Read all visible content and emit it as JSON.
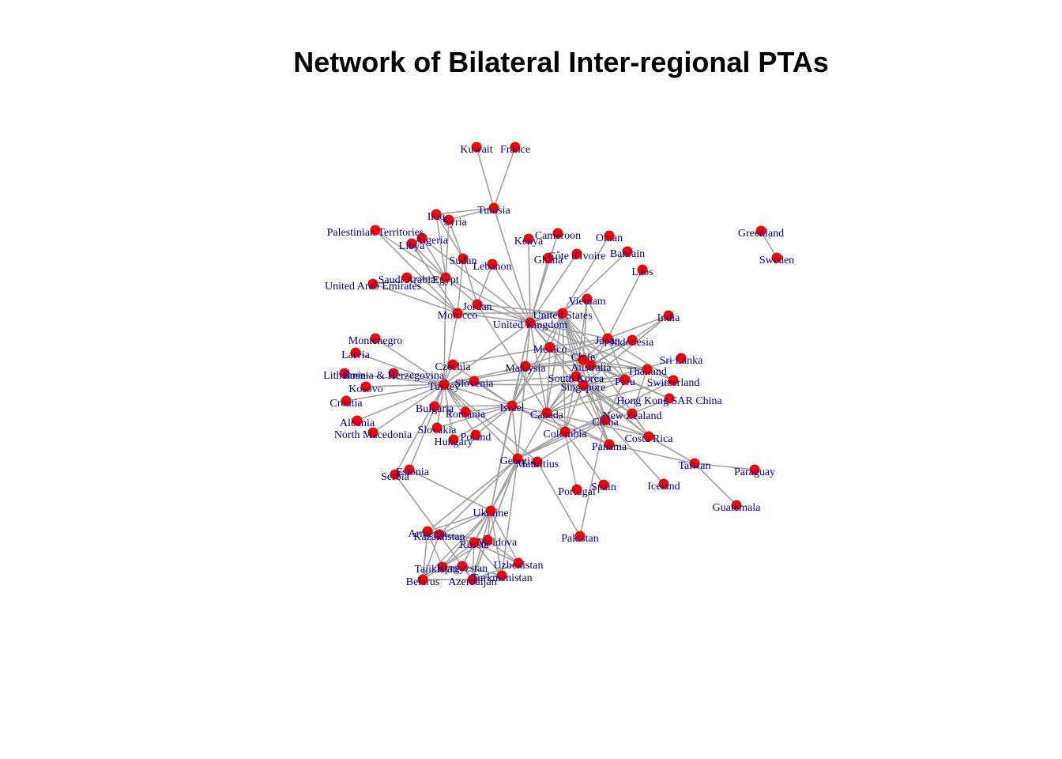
{
  "chart_data": {
    "type": "network",
    "title": "Network of Bilateral Inter-regional PTAs",
    "colors": {
      "node": "#ff0000",
      "edge": "#a0a0a0",
      "label": "#00008b"
    },
    "nodes": [
      "Kuwait",
      "France",
      "Tunisia",
      "Iraq",
      "Syria",
      "Palestinian Territories",
      "Algeria",
      "Libya",
      "Kenya",
      "Cameroon",
      "Oman",
      "Bahrain",
      "Greenland",
      "Sweden",
      "Sudan",
      "Lebanon",
      "Ghana",
      "Côte d'Ivoire",
      "Laos",
      "Saudi Arabia",
      "Egypt",
      "United Arab Emirates",
      "Jordan",
      "Morocco",
      "Vietnam",
      "United States",
      "United Kingdom",
      "India",
      "Montenegro",
      "Latvia",
      "Japan",
      "Indonesia",
      "Mexico",
      "Czechia",
      "Lithuania",
      "Bosnia & Herzegovina",
      "Malaysia",
      "Chile",
      "Australia",
      "Sri Lanka",
      "Thailand",
      "Kosovo",
      "Turkey",
      "Slovenia",
      "South Korea",
      "Peru",
      "Switzerland",
      "Singapore",
      "Croatia",
      "Hong Kong SAR China",
      "Bulgaria",
      "Israel",
      "Romania",
      "Canada",
      "New Zealand",
      "Albania",
      "China",
      "North Macedonia",
      "Slovakia",
      "Poland",
      "Hungary",
      "Colombia",
      "Costa Rica",
      "Panama",
      "Georgia",
      "Mauritius",
      "Taiwan",
      "Paraguay",
      "Estonia",
      "Serbia",
      "Portugal",
      "Spain",
      "Iceland",
      "Guatemala",
      "Ukraine",
      "Armenia",
      "Kazakhstan",
      "Pakistan",
      "Russia",
      "Moldova",
      "Tajikistan",
      "Kyrgyzstan",
      "Uzbekistan",
      "Turkmenistan",
      "Belarus",
      "Azerbaijan"
    ],
    "edges": [
      [
        "Kuwait",
        "Tunisia"
      ],
      [
        "France",
        "Tunisia"
      ],
      [
        "Tunisia",
        "United Kingdom"
      ],
      [
        "Tunisia",
        "Iraq"
      ],
      [
        "Tunisia",
        "Syria"
      ],
      [
        "Iraq",
        "Syria"
      ],
      [
        "Iraq",
        "Egypt"
      ],
      [
        "Iraq",
        "Sudan"
      ],
      [
        "Syria",
        "Sudan"
      ],
      [
        "Syria",
        "Egypt"
      ],
      [
        "Palestinian Territories",
        "Egypt"
      ],
      [
        "Palestinian Territories",
        "Morocco"
      ],
      [
        "Algeria",
        "Egypt"
      ],
      [
        "Algeria",
        "United Kingdom"
      ],
      [
        "Libya",
        "Egypt"
      ],
      [
        "Libya",
        "Morocco"
      ],
      [
        "Saudi Arabia",
        "Egypt"
      ],
      [
        "Saudi Arabia",
        "Morocco"
      ],
      [
        "United Arab Emirates",
        "Egypt"
      ],
      [
        "United Arab Emirates",
        "Morocco"
      ],
      [
        "Egypt",
        "Jordan"
      ],
      [
        "Egypt",
        "Turkey"
      ],
      [
        "Egypt",
        "United Kingdom"
      ],
      [
        "Sudan",
        "Morocco"
      ],
      [
        "Sudan",
        "Jordan"
      ],
      [
        "Lebanon",
        "United Kingdom"
      ],
      [
        "Lebanon",
        "Jordan"
      ],
      [
        "Jordan",
        "United Kingdom"
      ],
      [
        "Jordan",
        "United States"
      ],
      [
        "Jordan",
        "Canada"
      ],
      [
        "Morocco",
        "United States"
      ],
      [
        "Morocco",
        "United Kingdom"
      ],
      [
        "Morocco",
        "Turkey"
      ],
      [
        "Kenya",
        "United Kingdom"
      ],
      [
        "Cameroon",
        "United Kingdom"
      ],
      [
        "Ghana",
        "United Kingdom"
      ],
      [
        "Côte d'Ivoire",
        "United Kingdom"
      ],
      [
        "Oman",
        "United States"
      ],
      [
        "Bahrain",
        "United States"
      ],
      [
        "Laos",
        "Japan"
      ],
      [
        "Greenland",
        "Sweden"
      ],
      [
        "Vietnam",
        "United Kingdom"
      ],
      [
        "Vietnam",
        "South Korea"
      ],
      [
        "Vietnam",
        "Chile"
      ],
      [
        "Vietnam",
        "Japan"
      ],
      [
        "United States",
        "United Kingdom"
      ],
      [
        "United States",
        "Australia"
      ],
      [
        "United States",
        "Singapore"
      ],
      [
        "United States",
        "South Korea"
      ],
      [
        "United States",
        "Chile"
      ],
      [
        "United States",
        "Peru"
      ],
      [
        "United States",
        "Israel"
      ],
      [
        "United States",
        "Colombia"
      ],
      [
        "United States",
        "Panama"
      ],
      [
        "United States",
        "Costa Rica"
      ],
      [
        "United States",
        "Mexico"
      ],
      [
        "United States",
        "Canada"
      ],
      [
        "United Kingdom",
        "Japan"
      ],
      [
        "United Kingdom",
        "South Korea"
      ],
      [
        "United Kingdom",
        "Chile"
      ],
      [
        "United Kingdom",
        "Mexico"
      ],
      [
        "United Kingdom",
        "Israel"
      ],
      [
        "United Kingdom",
        "Canada"
      ],
      [
        "United Kingdom",
        "Singapore"
      ],
      [
        "United Kingdom",
        "Australia"
      ],
      [
        "United Kingdom",
        "Turkey"
      ],
      [
        "United Kingdom",
        "Georgia"
      ],
      [
        "United Kingdom",
        "Ukraine"
      ],
      [
        "United Kingdom",
        "Switzerland"
      ],
      [
        "India",
        "Japan"
      ],
      [
        "India",
        "South Korea"
      ],
      [
        "India",
        "Singapore"
      ],
      [
        "Montenegro",
        "Turkey"
      ],
      [
        "Latvia",
        "Turkey"
      ],
      [
        "Lithuania",
        "Turkey"
      ],
      [
        "Bosnia & Herzegovina",
        "Turkey"
      ],
      [
        "Kosovo",
        "Turkey"
      ],
      [
        "Croatia",
        "Turkey"
      ],
      [
        "Albania",
        "Turkey"
      ],
      [
        "North Macedonia",
        "Turkey"
      ],
      [
        "Czechia",
        "Turkey"
      ],
      [
        "Slovenia",
        "Turkey"
      ],
      [
        "Bulgaria",
        "Turkey"
      ],
      [
        "Romania",
        "Turkey"
      ],
      [
        "Slovakia",
        "Turkey"
      ],
      [
        "Poland",
        "Turkey"
      ],
      [
        "Hungary",
        "Turkey"
      ],
      [
        "Estonia",
        "Turkey"
      ],
      [
        "Serbia",
        "Turkey"
      ],
      [
        "Turkey",
        "Malaysia"
      ],
      [
        "Turkey",
        "South Korea"
      ],
      [
        "Turkey",
        "Singapore"
      ],
      [
        "Turkey",
        "Chile"
      ],
      [
        "Turkey",
        "Israel"
      ],
      [
        "Turkey",
        "Georgia"
      ],
      [
        "Turkey",
        "Mauritius"
      ],
      [
        "Czechia",
        "Israel"
      ],
      [
        "Slovenia",
        "Israel"
      ],
      [
        "Bulgaria",
        "Israel"
      ],
      [
        "Romania",
        "Israel"
      ],
      [
        "Poland",
        "Israel"
      ],
      [
        "Slovakia",
        "Israel"
      ],
      [
        "Hungary",
        "Israel"
      ],
      [
        "Czechia",
        "Mexico"
      ],
      [
        "Japan",
        "Mexico"
      ],
      [
        "Japan",
        "Chile"
      ],
      [
        "Japan",
        "Peru"
      ],
      [
        "Japan",
        "Switzerland"
      ],
      [
        "Japan",
        "Australia"
      ],
      [
        "Japan",
        "Malaysia"
      ],
      [
        "Indonesia",
        "Australia"
      ],
      [
        "Indonesia",
        "Chile"
      ],
      [
        "Indonesia",
        "South Korea"
      ],
      [
        "Mexico",
        "Israel"
      ],
      [
        "Mexico",
        "Panama"
      ],
      [
        "Mexico",
        "Peru"
      ],
      [
        "Mexico",
        "Canada"
      ],
      [
        "Malaysia",
        "Chile"
      ],
      [
        "Malaysia",
        "Australia"
      ],
      [
        "Malaysia",
        "Israel"
      ],
      [
        "Chile",
        "Australia"
      ],
      [
        "Chile",
        "Thailand"
      ],
      [
        "Chile",
        "Hong Kong SAR China"
      ],
      [
        "Chile",
        "China"
      ],
      [
        "Chile",
        "Canada"
      ],
      [
        "Australia",
        "Thailand"
      ],
      [
        "Australia",
        "Peru"
      ],
      [
        "Australia",
        "China"
      ],
      [
        "Australia",
        "Hong Kong SAR China"
      ],
      [
        "South Korea",
        "Peru"
      ],
      [
        "South Korea",
        "Singapore"
      ],
      [
        "South Korea",
        "China"
      ],
      [
        "South Korea",
        "Canada"
      ],
      [
        "South Korea",
        "Israel"
      ],
      [
        "South Korea",
        "Colombia"
      ],
      [
        "South Korea",
        "Costa Rica"
      ],
      [
        "South Korea",
        "New Zealand"
      ],
      [
        "Sri Lanka",
        "Singapore"
      ],
      [
        "Thailand",
        "Peru"
      ],
      [
        "Thailand",
        "New Zealand"
      ],
      [
        "Peru",
        "China"
      ],
      [
        "Peru",
        "Canada"
      ],
      [
        "Switzerland",
        "Canada"
      ],
      [
        "Singapore",
        "Peru"
      ],
      [
        "Singapore",
        "China"
      ],
      [
        "Singapore",
        "Panama"
      ],
      [
        "Singapore",
        "Costa Rica"
      ],
      [
        "Singapore",
        "Canada"
      ],
      [
        "Singapore",
        "New Zealand"
      ],
      [
        "Singapore",
        "Colombia"
      ],
      [
        "Hong Kong SAR China",
        "New Zealand"
      ],
      [
        "Israel",
        "Canada"
      ],
      [
        "Israel",
        "Colombia"
      ],
      [
        "Israel",
        "Ukraine"
      ],
      [
        "Israel",
        "Georgia"
      ],
      [
        "Israel",
        "Panama"
      ],
      [
        "Canada",
        "Colombia"
      ],
      [
        "Canada",
        "Panama"
      ],
      [
        "Canada",
        "Costa Rica"
      ],
      [
        "Canada",
        "Ukraine"
      ],
      [
        "Canada",
        "Peru"
      ],
      [
        "New Zealand",
        "China"
      ],
      [
        "New Zealand",
        "Costa Rica"
      ],
      [
        "China",
        "Costa Rica"
      ],
      [
        "China",
        "Georgia"
      ],
      [
        "China",
        "Mauritius"
      ],
      [
        "China",
        "Iceland"
      ],
      [
        "China",
        "Pakistan"
      ],
      [
        "China",
        "Colombia"
      ],
      [
        "China",
        "Peru"
      ],
      [
        "Costa Rica",
        "Taiwan"
      ],
      [
        "Panama",
        "Taiwan"
      ],
      [
        "Taiwan",
        "Paraguay"
      ],
      [
        "Taiwan",
        "Guatemala"
      ],
      [
        "Colombia",
        "Portugal"
      ],
      [
        "Colombia",
        "Spain"
      ],
      [
        "Colombia",
        "Georgia"
      ],
      [
        "Switzerland",
        "Georgia"
      ],
      [
        "Georgia",
        "Ukraine"
      ],
      [
        "Georgia",
        "Armenia"
      ],
      [
        "Georgia",
        "Kazakhstan"
      ],
      [
        "Georgia",
        "Russia"
      ],
      [
        "Georgia",
        "Azerbaijan"
      ],
      [
        "Georgia",
        "Moldova"
      ],
      [
        "Georgia",
        "Turkmenistan"
      ],
      [
        "Mauritius",
        "Pakistan"
      ],
      [
        "Estonia",
        "Ukraine"
      ],
      [
        "Serbia",
        "Kazakhstan"
      ],
      [
        "Estonia",
        "Serbia"
      ],
      [
        "Ukraine",
        "Armenia"
      ],
      [
        "Ukraine",
        "Kazakhstan"
      ],
      [
        "Ukraine",
        "Russia"
      ],
      [
        "Ukraine",
        "Moldova"
      ],
      [
        "Ukraine",
        "Tajikistan"
      ],
      [
        "Ukraine",
        "Kyrgyzstan"
      ],
      [
        "Ukraine",
        "Uzbekistan"
      ],
      [
        "Ukraine",
        "Turkmenistan"
      ],
      [
        "Ukraine",
        "Belarus"
      ],
      [
        "Ukraine",
        "Azerbaijan"
      ],
      [
        "Armenia",
        "Kazakhstan"
      ],
      [
        "Armenia",
        "Russia"
      ],
      [
        "Armenia",
        "Tajikistan"
      ],
      [
        "Armenia",
        "Belarus"
      ],
      [
        "Armenia",
        "Moldova"
      ],
      [
        "Kazakhstan",
        "Russia"
      ],
      [
        "Kazakhstan",
        "Moldova"
      ],
      [
        "Kazakhstan",
        "Belarus"
      ],
      [
        "Kazakhstan",
        "Kyrgyzstan"
      ],
      [
        "Russia",
        "Moldova"
      ],
      [
        "Russia",
        "Tajikistan"
      ],
      [
        "Russia",
        "Kyrgyzstan"
      ],
      [
        "Russia",
        "Uzbekistan"
      ],
      [
        "Russia",
        "Turkmenistan"
      ],
      [
        "Russia",
        "Azerbaijan"
      ],
      [
        "Moldova",
        "Uzbekistan"
      ],
      [
        "Moldova",
        "Azerbaijan"
      ],
      [
        "Moldova",
        "Tajikistan"
      ],
      [
        "Tajikistan",
        "Kyrgyzstan"
      ],
      [
        "Tajikistan",
        "Belarus"
      ],
      [
        "Kyrgyzstan",
        "Azerbaijan"
      ],
      [
        "Kyrgyzstan",
        "Turkmenistan"
      ],
      [
        "Uzbekistan",
        "Azerbaijan"
      ],
      [
        "Turkmenistan",
        "Azerbaijan"
      ],
      [
        "Belarus",
        "Azerbaijan"
      ]
    ]
  }
}
